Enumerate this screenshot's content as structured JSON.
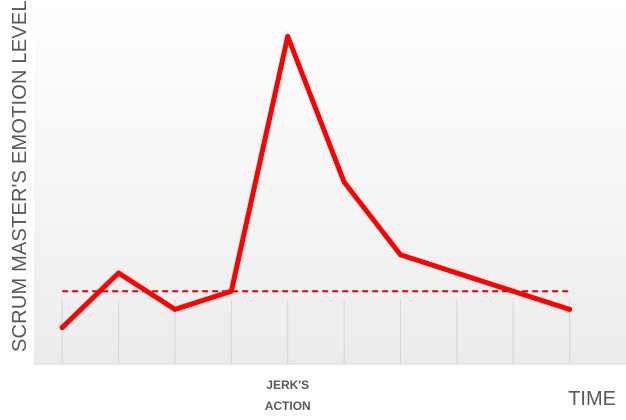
{
  "chart_data": {
    "type": "line",
    "title": "",
    "ylabel": "SCRUM MASTER'S EMOTION LEVEL",
    "xlabel": "TIME",
    "x": [
      1,
      2,
      3,
      4,
      5,
      6,
      7,
      8,
      9,
      10
    ],
    "x_tick_labels": [
      {
        "x": 5,
        "lines": [
          "JERK'S",
          "ACTION"
        ]
      }
    ],
    "series": [
      {
        "values": [
          1.0,
          2.5,
          1.5,
          2.0,
          9.0,
          5.0,
          3.0,
          2.5,
          2.0,
          1.5
        ]
      }
    ],
    "reference_line": {
      "style": "dashed",
      "value": 2.0
    },
    "ylim": [
      0,
      10.0
    ],
    "xlim": [
      0.5,
      11.0
    ],
    "grid": "vertical",
    "colors": {
      "series": "#ff0000",
      "reference": "#e00000",
      "grid": "#d4d4d4",
      "text": "#595959"
    }
  }
}
